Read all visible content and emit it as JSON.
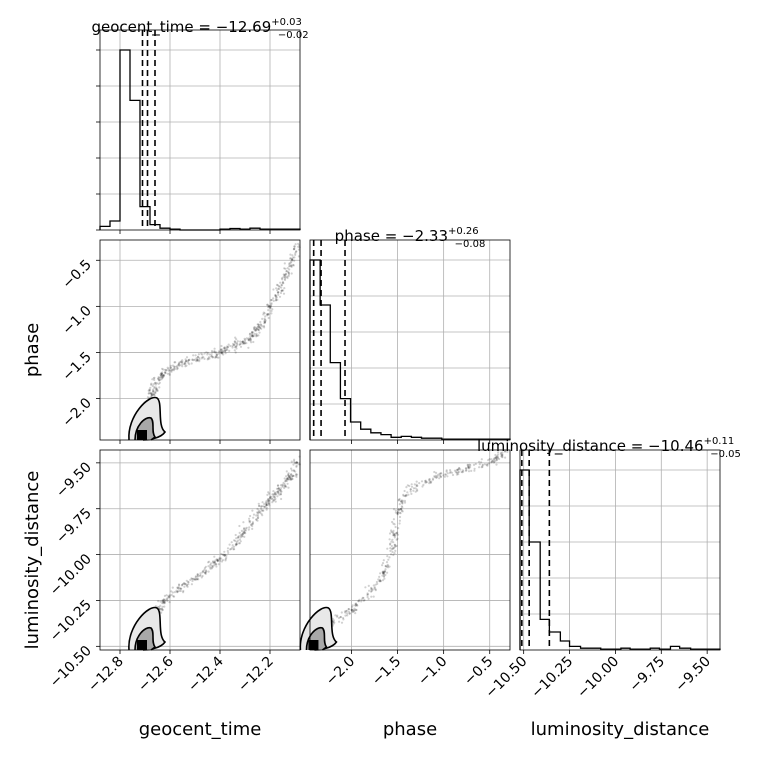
{
  "chart_data": {
    "type": "corner",
    "grid": true,
    "parameters": [
      "geocent_time",
      "phase",
      "luminosity_distance"
    ],
    "titles": [
      {
        "param": "geocent_time",
        "prefix": "geocent_time = ",
        "median": "−12.69",
        "plus": "+0.03",
        "minus": "−0.02"
      },
      {
        "param": "phase",
        "prefix": "phase = ",
        "median": "−2.33",
        "plus": "+0.26",
        "minus": "−0.08"
      },
      {
        "param": "luminosity_distance",
        "prefix": "luminosity_distance = ",
        "median": "−10.46",
        "plus": "+0.11",
        "minus": "−0.05"
      }
    ],
    "axes": {
      "geocent_time": {
        "range": [
          -12.88,
          -12.08
        ],
        "ticks": [
          -12.8,
          -12.6,
          -12.4,
          -12.2
        ],
        "tick_labels": [
          "−12.8",
          "−12.6",
          "−12.4",
          "−12.2"
        ]
      },
      "phase": {
        "range": [
          -2.45,
          -0.28
        ],
        "ticks": [
          -2.0,
          -1.5,
          -1.0,
          -0.5
        ],
        "tick_labels": [
          "−2.0",
          "−1.5",
          "−1.0",
          "−0.5"
        ]
      },
      "luminosity_distance": {
        "range": [
          -10.52,
          -9.43
        ],
        "ticks": [
          -10.5,
          -10.25,
          -10.0,
          -9.75,
          -9.5
        ],
        "tick_labels": [
          "−10.50",
          "−10.25",
          "−10.00",
          "−9.75",
          "−9.50"
        ]
      }
    },
    "histograms": {
      "geocent_time": {
        "bin_edges": [
          -12.88,
          -12.84,
          -12.8,
          -12.76,
          -12.72,
          -12.68,
          -12.64,
          -12.6,
          -12.56,
          -12.52,
          -12.48,
          -12.44,
          -12.4,
          -12.36,
          -12.32,
          -12.28,
          -12.24,
          -12.2,
          -12.16,
          -12.12,
          -12.08
        ],
        "counts": [
          2,
          5,
          100,
          72,
          13,
          3,
          1,
          0.5,
          0,
          0,
          0,
          0,
          0.5,
          0.8,
          0.5,
          1,
          0.5,
          0.5,
          0.5,
          0.5
        ],
        "quantiles": [
          -12.71,
          -12.69,
          -12.66
        ]
      },
      "phase": {
        "bin_edges": [
          -2.45,
          -2.34,
          -2.23,
          -2.12,
          -2.01,
          -1.9,
          -1.79,
          -1.68,
          -1.57,
          -1.46,
          -1.35,
          -1.24,
          -1.13,
          -1.02,
          -0.91,
          -0.8,
          -0.69,
          -0.58,
          -0.47,
          -0.36,
          -0.28
        ],
        "counts": [
          100,
          75,
          43,
          23,
          10,
          6,
          4,
          3,
          1.5,
          2,
          1.5,
          1,
          1,
          0.5,
          0.5,
          0.5,
          0.5,
          0.5,
          0.5,
          0.5
        ],
        "quantiles": [
          -2.41,
          -2.33,
          -2.07
        ]
      },
      "luminosity_distance": {
        "bin_edges": [
          -10.52,
          -10.47,
          -10.41,
          -10.36,
          -10.3,
          -10.25,
          -10.19,
          -10.14,
          -10.08,
          -10.03,
          -9.97,
          -9.92,
          -9.86,
          -9.81,
          -9.76,
          -9.7,
          -9.65,
          -9.59,
          -9.54,
          -9.48,
          -9.43
        ],
        "counts": [
          100,
          60,
          17,
          10,
          5,
          2,
          1,
          1,
          0.5,
          0.5,
          1,
          0.5,
          0.5,
          1,
          0.5,
          2,
          1,
          0.5,
          0.5,
          0.5
        ],
        "quantiles": [
          -10.51,
          -10.47,
          -10.36
        ]
      }
    },
    "scatter_curves": {
      "phase_vs_geocent_time": [
        [
          -12.72,
          -2.4
        ],
        [
          -12.7,
          -2.2
        ],
        [
          -12.68,
          -2.0
        ],
        [
          -12.66,
          -1.85
        ],
        [
          -12.62,
          -1.72
        ],
        [
          -12.56,
          -1.62
        ],
        [
          -12.48,
          -1.57
        ],
        [
          -12.4,
          -1.5
        ],
        [
          -12.34,
          -1.42
        ],
        [
          -12.28,
          -1.36
        ],
        [
          -12.24,
          -1.22
        ],
        [
          -12.2,
          -1.0
        ],
        [
          -12.16,
          -0.8
        ],
        [
          -12.12,
          -0.55
        ],
        [
          -12.08,
          -0.32
        ]
      ],
      "luminosity_distance_vs_geocent_time": [
        [
          -12.72,
          -10.5
        ],
        [
          -12.68,
          -10.38
        ],
        [
          -12.64,
          -10.28
        ],
        [
          -12.58,
          -10.2
        ],
        [
          -12.5,
          -10.13
        ],
        [
          -12.42,
          -10.05
        ],
        [
          -12.36,
          -9.97
        ],
        [
          -12.3,
          -9.87
        ],
        [
          -12.24,
          -9.76
        ],
        [
          -12.2,
          -9.7
        ],
        [
          -12.16,
          -9.65
        ],
        [
          -12.12,
          -9.58
        ],
        [
          -12.08,
          -9.46
        ]
      ],
      "luminosity_distance_vs_phase": [
        [
          -2.42,
          -10.5
        ],
        [
          -2.3,
          -10.4
        ],
        [
          -2.05,
          -10.32
        ],
        [
          -1.85,
          -10.24
        ],
        [
          -1.65,
          -10.1
        ],
        [
          -1.55,
          -9.95
        ],
        [
          -1.5,
          -9.78
        ],
        [
          -1.4,
          -9.66
        ],
        [
          -1.1,
          -9.58
        ],
        [
          -0.8,
          -9.54
        ],
        [
          -0.5,
          -9.5
        ],
        [
          -0.3,
          -9.44
        ]
      ]
    },
    "contour_cores": [
      {
        "x": "geocent_time",
        "y": "phase",
        "center": [
          -12.7,
          -2.38
        ]
      },
      {
        "x": "geocent_time",
        "y": "luminosity_distance",
        "center": [
          -12.7,
          -10.48
        ]
      },
      {
        "x": "phase",
        "y": "luminosity_distance",
        "center": [
          -2.38,
          -10.48
        ]
      }
    ]
  }
}
